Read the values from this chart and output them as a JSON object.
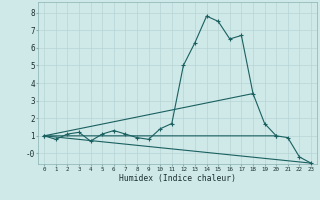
{
  "xlabel": "Humidex (Indice chaleur)",
  "background_color": "#cfe8e8",
  "grid_color": "#b8d4d4",
  "line_color": "#1a6060",
  "x": [
    0,
    1,
    2,
    3,
    4,
    5,
    6,
    7,
    8,
    9,
    10,
    11,
    12,
    13,
    14,
    15,
    16,
    17,
    18,
    19,
    20,
    21,
    22,
    23
  ],
  "line1_y": [
    1.0,
    0.8,
    1.1,
    1.2,
    0.7,
    1.1,
    1.3,
    1.1,
    0.9,
    0.8,
    1.4,
    1.7,
    5.0,
    6.3,
    7.8,
    7.5,
    6.5,
    6.7,
    3.4,
    1.7,
    1.0,
    null,
    null,
    null
  ],
  "line_diag_up": [
    [
      0,
      1.0
    ],
    [
      18,
      3.4
    ]
  ],
  "line_diag_down": [
    [
      0,
      1.0
    ],
    [
      23,
      -0.55
    ]
  ],
  "line_flat_end": [
    [
      0,
      1.0
    ],
    [
      20,
      1.0
    ],
    [
      21,
      0.9
    ],
    [
      22,
      -0.2
    ],
    [
      23,
      -0.55
    ]
  ],
  "xlim": [
    -0.5,
    23.5
  ],
  "ylim": [
    -0.6,
    8.6
  ],
  "xticks": [
    0,
    1,
    2,
    3,
    4,
    5,
    6,
    7,
    8,
    9,
    10,
    11,
    12,
    13,
    14,
    15,
    16,
    17,
    18,
    19,
    20,
    21,
    22,
    23
  ],
  "yticks": [
    0,
    1,
    2,
    3,
    4,
    5,
    6,
    7,
    8
  ],
  "ytick_labels": [
    "-0",
    "1",
    "2",
    "3",
    "4",
    "5",
    "6",
    "7",
    "8"
  ]
}
